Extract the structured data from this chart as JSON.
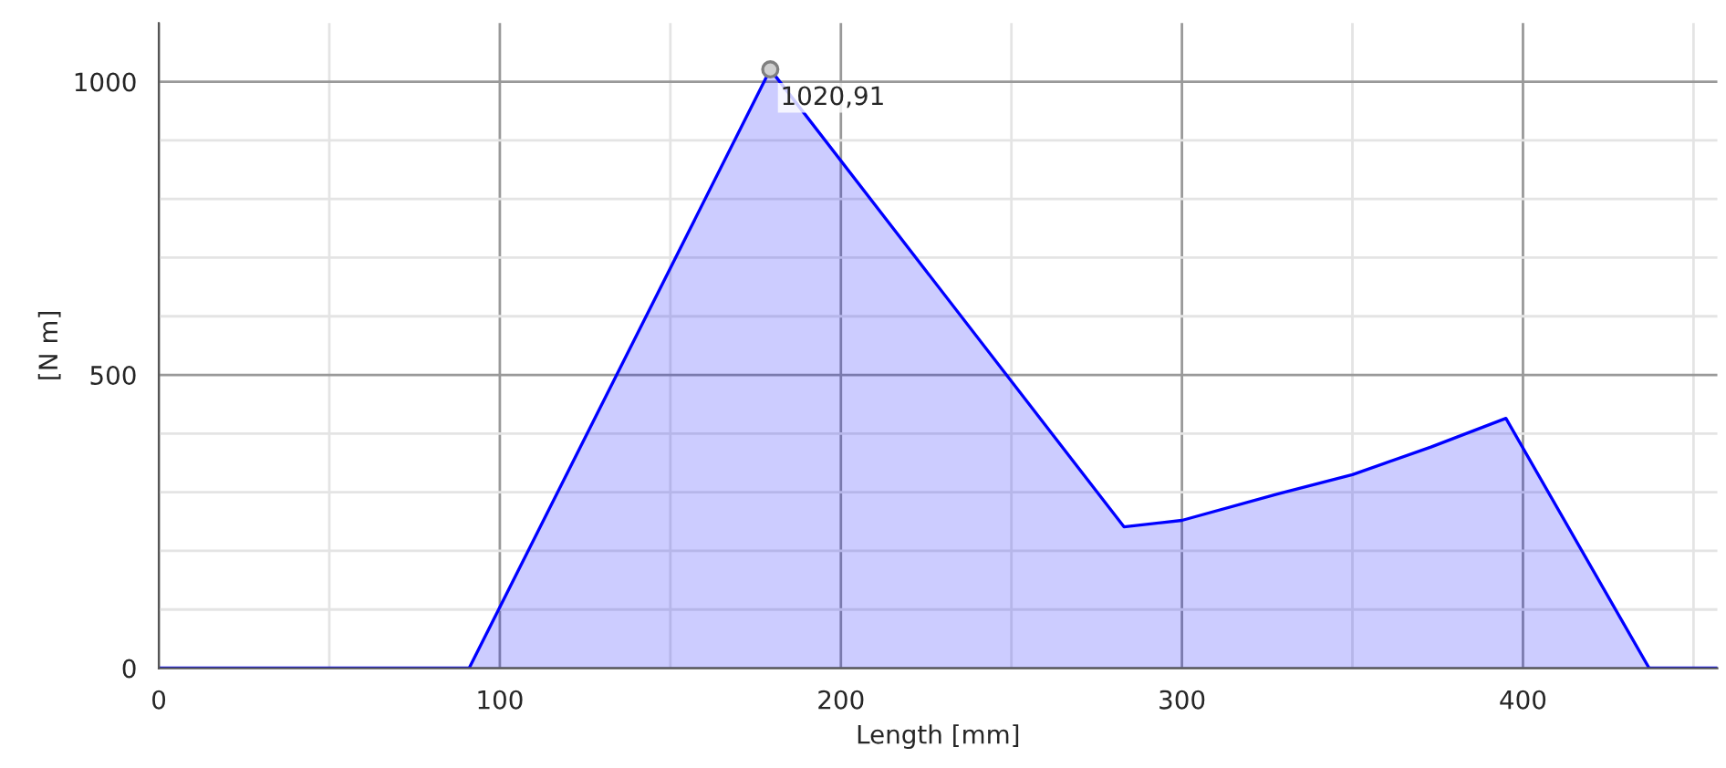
{
  "chart_data": {
    "type": "area",
    "xlabel": "Length [mm]",
    "ylabel": "[N m]",
    "series": [
      {
        "color": "#0000ff",
        "x": [
          0,
          91,
          179.3,
          283,
          300,
          328,
          350,
          373,
          395,
          437,
          457
        ],
        "values": [
          0,
          0,
          1020.91,
          241,
          252,
          297,
          330,
          377,
          426,
          0,
          0
        ]
      },
      {
        "type": "scatter",
        "color": "#808080",
        "marker": "circle",
        "x": [
          179.3
        ],
        "values": [
          1020.91
        ]
      }
    ],
    "annotations": [
      {
        "text": "1020,91",
        "x": 179.3,
        "y": 1020.91
      }
    ],
    "xlim": [
      0,
      457
    ],
    "ylim": [
      0,
      1100
    ],
    "xticks": [
      0,
      {
        "value": 50,
        "label": null
      },
      100,
      {
        "value": 150,
        "label": null
      },
      200,
      {
        "value": 250,
        "label": null
      },
      300,
      {
        "value": 350,
        "label": null
      },
      400,
      {
        "value": 450,
        "label": null
      }
    ],
    "yticks": [
      0,
      {
        "value": 100,
        "label": null
      },
      {
        "value": 200,
        "label": null
      },
      {
        "value": 300,
        "label": null
      },
      {
        "value": 400,
        "label": null
      },
      500,
      {
        "value": 600,
        "label": null
      },
      {
        "value": 700,
        "label": null
      },
      {
        "value": 800,
        "label": null
      },
      {
        "value": 900,
        "label": null
      },
      1000
    ],
    "grid": true,
    "legend": false
  }
}
